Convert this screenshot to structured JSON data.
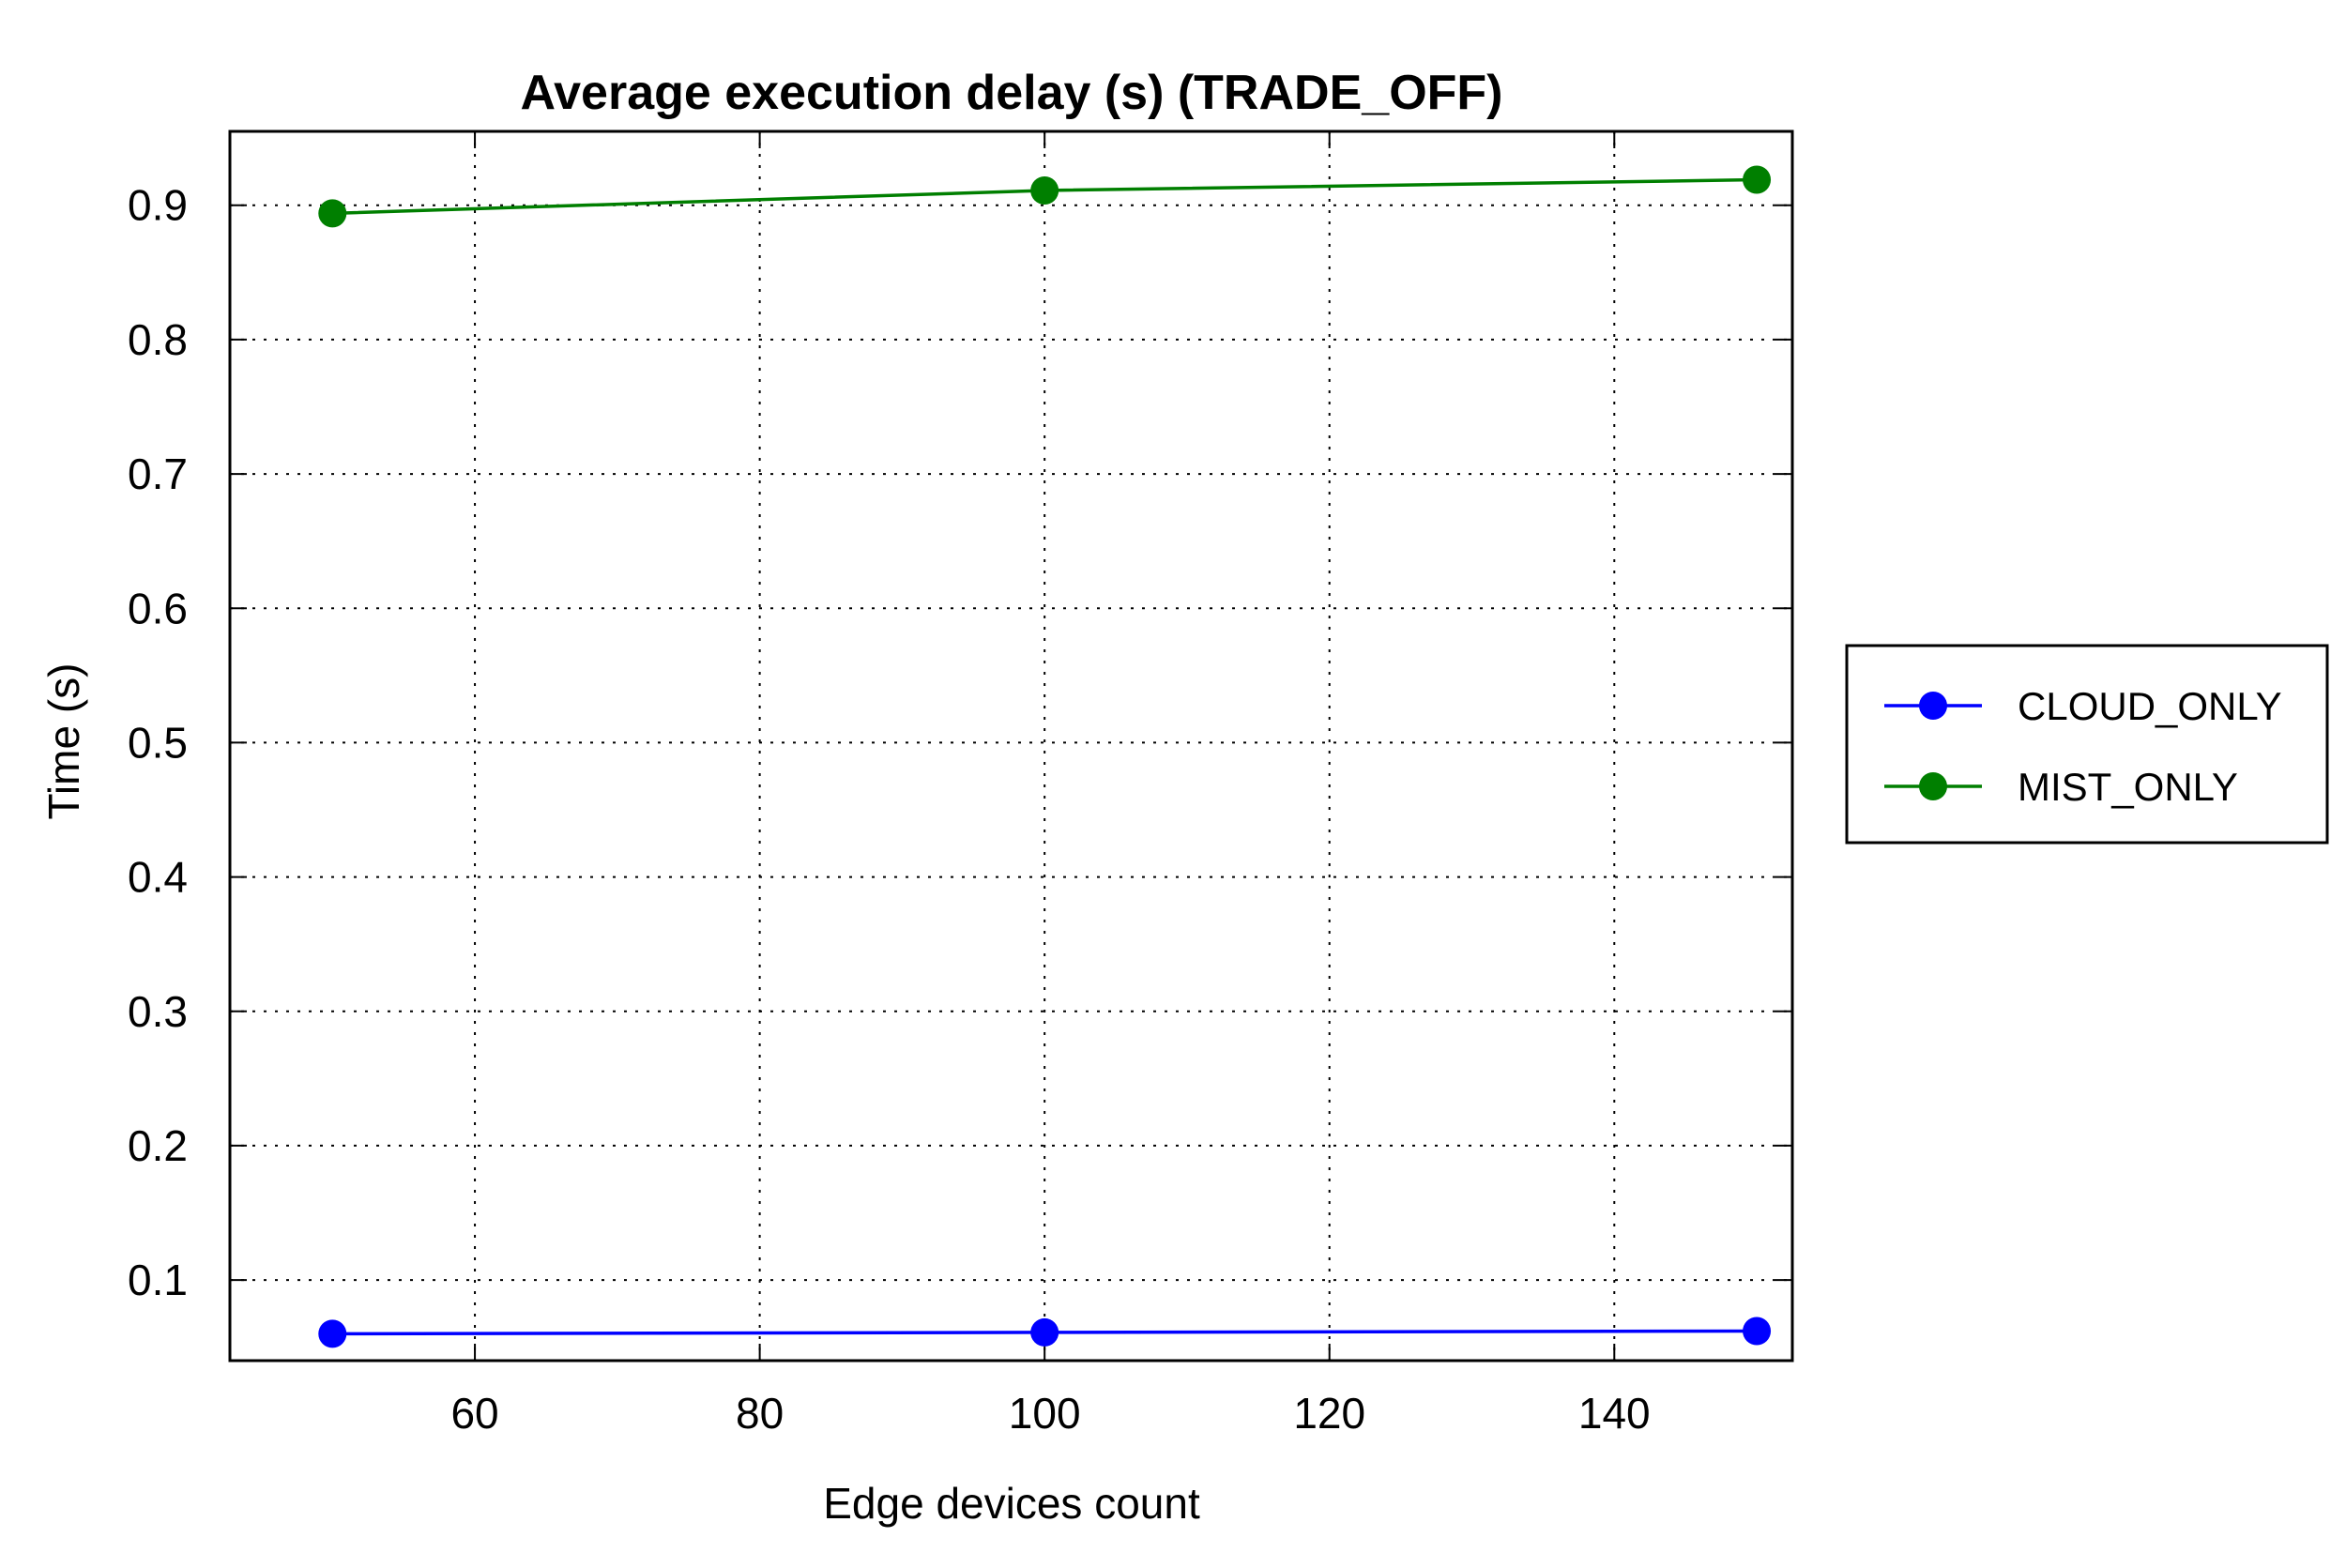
{
  "chart_data": {
    "type": "line",
    "title": "Average execution delay (s) (TRADE_OFF)",
    "xlabel": "Edge devices count",
    "ylabel": "Time (s)",
    "xlim": [
      42.8,
      152.5
    ],
    "ylim": [
      0.04,
      0.955
    ],
    "x_ticks": [
      60,
      80,
      100,
      120,
      140
    ],
    "x_tick_labels": [
      "60",
      "80",
      "100",
      "120",
      "140"
    ],
    "y_ticks": [
      0.1,
      0.2,
      0.3,
      0.4,
      0.5,
      0.6,
      0.7,
      0.8,
      0.9
    ],
    "y_tick_labels": [
      "0.1",
      "0.2",
      "0.3",
      "0.4",
      "0.5",
      "0.6",
      "0.7",
      "0.8",
      "0.9"
    ],
    "grid": true,
    "legend_position": "right-outside",
    "x": [
      50,
      100,
      150
    ],
    "series": [
      {
        "name": "CLOUD_ONLY",
        "color": "#0000ff",
        "values": [
          0.06,
          0.061,
          0.062
        ]
      },
      {
        "name": "MIST_ONLY",
        "color": "#007f00",
        "values": [
          0.894,
          0.911,
          0.919
        ]
      }
    ]
  }
}
